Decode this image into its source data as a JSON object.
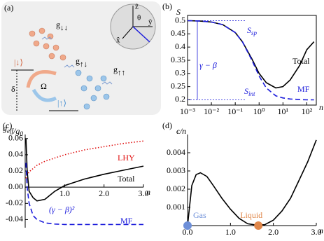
{
  "diagram": {
    "label": "(a)",
    "couplings": [
      {
        "text": "g",
        "sub": "↓↓"
      },
      {
        "text": "g",
        "sub": "↑↓"
      },
      {
        "text": "g",
        "sub": "↑↑"
      }
    ],
    "states": [
      "|↓⟩",
      "|↑⟩"
    ],
    "rabi": "Ω",
    "detuning": "δ",
    "sphere_axes": [
      "ẑ",
      "x̂",
      "ŷ"
    ],
    "angle": "θ"
  },
  "chart_data": [
    {
      "type": "line",
      "panel": "(b)",
      "ylabel": "S",
      "xlabel": "n",
      "xscale": "log",
      "frame": true,
      "xlim": [
        0.001,
        250
      ],
      "ylim": [
        0.18,
        0.52
      ],
      "xticks": [
        {
          "value": 0.001,
          "label": "10⁻³"
        },
        {
          "value": 0.01,
          "label": "10⁻²"
        },
        {
          "value": 0.1,
          "label": "10⁻¹"
        },
        {
          "value": 1,
          "label": "10⁰"
        },
        {
          "value": 10,
          "label": "10¹"
        },
        {
          "value": 100,
          "label": "10²"
        }
      ],
      "yticks": [
        0.2,
        0.25,
        0.3,
        0.35,
        0.4,
        0.45,
        0.5
      ],
      "x": [
        0.001,
        0.003,
        0.01,
        0.03,
        0.1,
        0.2,
        0.5,
        1,
        2,
        5,
        10,
        20,
        50,
        100,
        200
      ],
      "series": [
        {
          "name": "Total",
          "color": "#000000",
          "style": "solid",
          "values": [
            0.5,
            0.499,
            0.495,
            0.485,
            0.455,
            0.42,
            0.355,
            0.3,
            0.265,
            0.245,
            0.25,
            0.275,
            0.33,
            0.39,
            0.42
          ]
        },
        {
          "name": "MF",
          "color": "#1a1adb",
          "style": "dashed",
          "values": [
            0.5,
            0.499,
            0.495,
            0.485,
            0.455,
            0.42,
            0.35,
            0.29,
            0.245,
            0.215,
            0.207,
            0.203,
            0.201,
            0.2,
            0.2
          ]
        }
      ],
      "hlines": [
        0.5,
        0.2
      ],
      "annotations": [
        {
          "text": "S",
          "sub": "sp"
        },
        {
          "text": "S",
          "sub": "int"
        },
        {
          "text": "γ − β"
        }
      ]
    },
    {
      "type": "line",
      "panel": "(c)",
      "ylabel": [
        {
          "text": "g",
          "sub": "eff"
        },
        {
          "text": "/g",
          "sub": "0"
        }
      ],
      "xlabel": "n",
      "xlim": [
        0,
        3
      ],
      "ylim": [
        -0.05,
        0.065
      ],
      "xticks": [
        {
          "value": 1,
          "label": "1.0"
        },
        {
          "value": 2,
          "label": "2.0"
        },
        {
          "value": 3,
          "label": "3.0"
        }
      ],
      "yticks": [
        -0.04,
        -0.02,
        {
          "value": 0,
          "label": "0.00"
        },
        0.02,
        0.04,
        0.06
      ],
      "x": [
        0.02,
        0.05,
        0.1,
        0.2,
        0.3,
        0.5,
        0.75,
        1,
        1.5,
        2,
        2.5,
        3
      ],
      "series": [
        {
          "name": "LHY",
          "color": "#e01010",
          "style": "dotted",
          "values": [
            0.011,
            0.015,
            0.019,
            0.023,
            0.027,
            0.032,
            0.036,
            0.04,
            0.046,
            0.05,
            0.054,
            0.057
          ]
        },
        {
          "name": "Total",
          "color": "#000000",
          "style": "solid",
          "values": [
            0.06,
            0.02,
            -0.005,
            -0.013,
            -0.017,
            -0.015,
            -0.005,
            0.002,
            0.01,
            0.016,
            0.021,
            0.026
          ]
        },
        {
          "name": "MF",
          "color": "#1a1adb",
          "style": "dashed",
          "values": [
            0.03,
            0.0,
            -0.02,
            -0.035,
            -0.04,
            -0.044,
            -0.0455,
            -0.046,
            -0.046,
            -0.046,
            -0.046,
            -0.046
          ]
        }
      ],
      "annotations": [
        {
          "text": "(γ − β)²"
        }
      ]
    },
    {
      "type": "line",
      "panel": "(d)",
      "ylabel": "ϵ/n",
      "xlabel": "n",
      "xlim": [
        0,
        3
      ],
      "ylim": [
        0,
        0.005
      ],
      "xticks": [
        {
          "value": 0,
          "label": "0.0"
        },
        {
          "value": 1,
          "label": "1.0"
        },
        {
          "value": 2,
          "label": "2.0"
        },
        {
          "value": 3,
          "label": "3.0"
        }
      ],
      "yticks": [
        0.001,
        0.002,
        0.003,
        0.004
      ],
      "x": [
        0,
        0.1,
        0.2,
        0.3,
        0.45,
        0.6,
        0.8,
        1,
        1.2,
        1.4,
        1.6,
        1.8,
        2,
        2.2,
        2.4,
        2.6,
        2.8,
        3
      ],
      "series": [
        {
          "name": null,
          "color": "#000000",
          "style": "solid",
          "values": [
            0,
            0.0022,
            0.0028,
            0.0029,
            0.0027,
            0.0022,
            0.0015,
            0.0009,
            0.0004,
            0.0001,
            3e-05,
            5e-05,
            0.0003,
            0.0008,
            0.0015,
            0.0025,
            0.0035,
            0.0047
          ]
        }
      ],
      "markers": [
        {
          "name": "Gas",
          "x": 0,
          "y": 0,
          "color": "#6d8fd8"
        },
        {
          "name": "Liquid",
          "x": 1.65,
          "y": 0,
          "color": "#e0874a"
        }
      ]
    }
  ]
}
